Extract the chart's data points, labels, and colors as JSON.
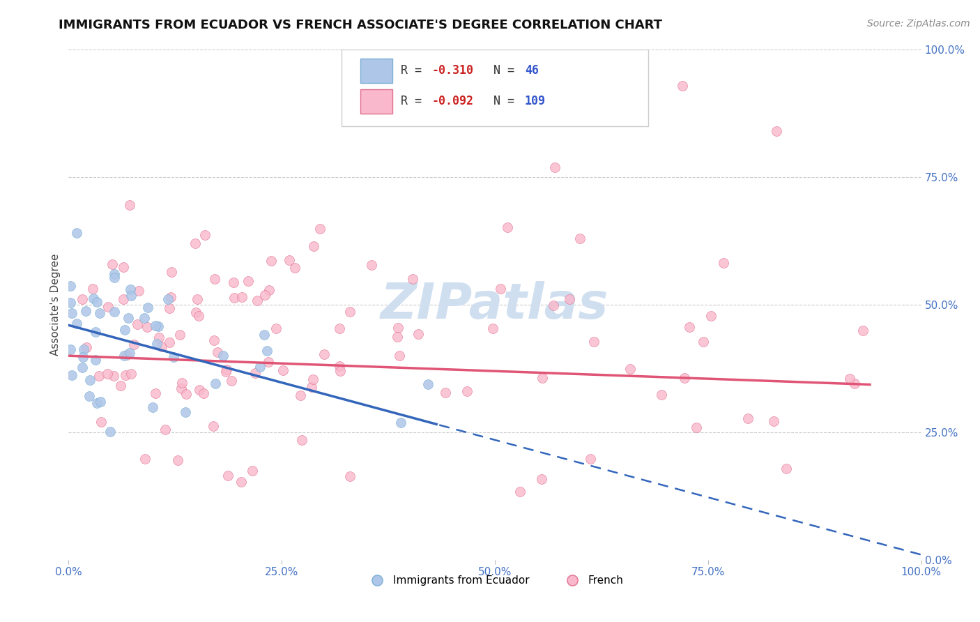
{
  "title": "IMMIGRANTS FROM ECUADOR VS FRENCH ASSOCIATE'S DEGREE CORRELATION CHART",
  "source_text": "Source: ZipAtlas.com",
  "ylabel": "Associate's Degree",
  "right_ytick_labels": [
    "0.0%",
    "25.0%",
    "50.0%",
    "75.0%",
    "100.0%"
  ],
  "right_ytick_color": "#4472c4",
  "xtick_labels": [
    "0.0%",
    "25.0%",
    "50.0%",
    "75.0%",
    "100.0%"
  ],
  "xtick_color": "#4472c4",
  "legend_label1": "Immigrants from Ecuador",
  "legend_label2": "French",
  "series1_color": "#aec6e8",
  "series1_edge": "#7bafd4",
  "series1_line_color": "#3366bb",
  "series2_color": "#f9b8cb",
  "series2_edge": "#e07090",
  "series2_line_color": "#e05575",
  "background_color": "#ffffff",
  "grid_color": "#cccccc",
  "R1": -0.31,
  "N1": 46,
  "R2": -0.092,
  "N2": 109,
  "xlim": [
    0.0,
    1.0
  ],
  "ylim": [
    0.0,
    1.0
  ],
  "watermark_text": "ZIPatlas",
  "watermark_color": "#d0dff0",
  "title_fontsize": 13,
  "source_fontsize": 10,
  "legend_r1_color": "#cc2222",
  "legend_n1_color": "#3355cc",
  "legend_r2_color": "#cc2222",
  "legend_n2_color": "#3355cc"
}
